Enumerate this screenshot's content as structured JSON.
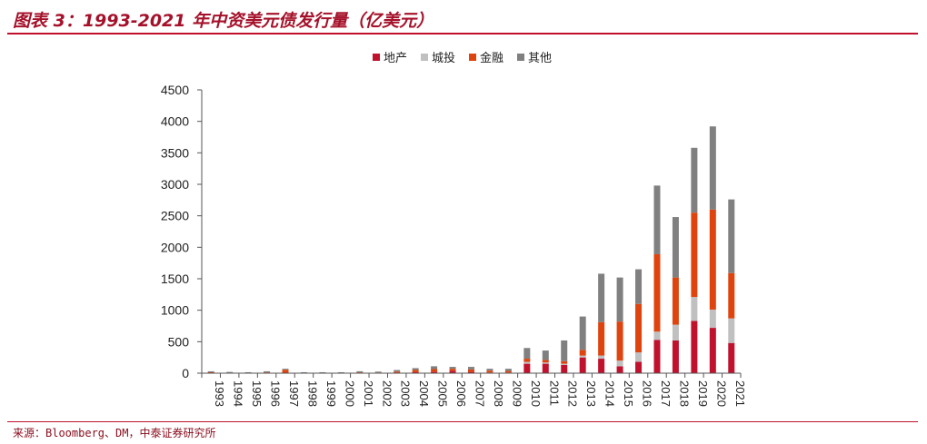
{
  "header": {
    "title": "图表 3：1993-2021 年中资美元债发行量（亿美元）"
  },
  "footer": {
    "source": "来源：Bloomberg、DM，中泰证券研究所"
  },
  "colors": {
    "accent": "#c0102b",
    "series": [
      "#c0122d",
      "#c0c0c0",
      "#e0440e",
      "#808080"
    ]
  },
  "chart_data": {
    "type": "bar",
    "stacked": true,
    "title": "",
    "xlabel": "",
    "ylabel": "",
    "ylim": [
      0,
      4500
    ],
    "yticks": [
      0,
      500,
      1000,
      1500,
      2000,
      2500,
      3000,
      3500,
      4000,
      4500
    ],
    "legend_position": "top-center",
    "categories": [
      "1993",
      "1994",
      "1995",
      "1996",
      "1997",
      "1998",
      "1999",
      "2000",
      "2001",
      "2002",
      "2003",
      "2004",
      "2005",
      "2006",
      "2007",
      "2008",
      "2009",
      "2010",
      "2011",
      "2012",
      "2013",
      "2014",
      "2015",
      "2016",
      "2017",
      "2018",
      "2019",
      "2020",
      "2021"
    ],
    "series": [
      {
        "name": "地产",
        "values": [
          5,
          3,
          2,
          3,
          5,
          2,
          1,
          2,
          3,
          3,
          5,
          15,
          20,
          40,
          20,
          10,
          10,
          150,
          150,
          130,
          250,
          230,
          110,
          180,
          530,
          520,
          830,
          720,
          480
        ]
      },
      {
        "name": "城投",
        "values": [
          0,
          0,
          0,
          0,
          0,
          0,
          0,
          0,
          0,
          0,
          0,
          0,
          0,
          0,
          0,
          0,
          0,
          30,
          20,
          20,
          30,
          50,
          90,
          150,
          130,
          250,
          380,
          290,
          390
        ]
      },
      {
        "name": "金融",
        "values": [
          10,
          5,
          5,
          10,
          50,
          5,
          5,
          5,
          10,
          8,
          20,
          35,
          45,
          30,
          40,
          30,
          25,
          50,
          40,
          40,
          90,
          530,
          620,
          770,
          1230,
          750,
          1340,
          1590,
          720
        ]
      },
      {
        "name": "其他",
        "values": [
          15,
          12,
          8,
          17,
          15,
          8,
          9,
          8,
          17,
          14,
          25,
          30,
          45,
          30,
          40,
          30,
          35,
          170,
          150,
          330,
          530,
          770,
          700,
          550,
          1090,
          960,
          1030,
          1320,
          1170
        ]
      }
    ]
  }
}
